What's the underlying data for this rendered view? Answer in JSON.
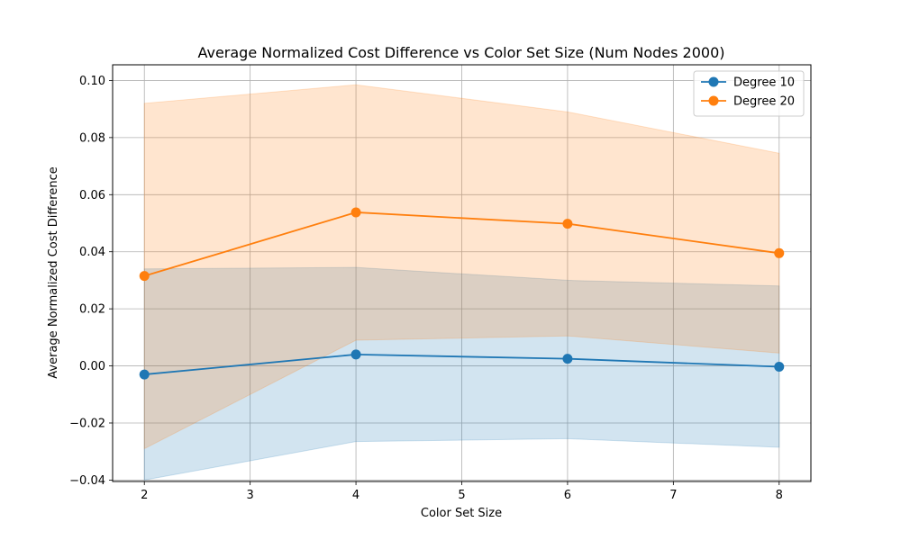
{
  "chart_data": {
    "type": "line",
    "title": "Average Normalized Cost Difference vs Color Set Size (Num Nodes 2000)",
    "xlabel": "Color Set Size",
    "ylabel": "Average Normalized Cost Difference",
    "xlim": [
      1.7,
      8.3
    ],
    "ylim": [
      -0.0405,
      0.1055
    ],
    "xticks": [
      2,
      3,
      4,
      5,
      6,
      7,
      8
    ],
    "yticks": [
      -0.04,
      -0.02,
      0.0,
      0.02,
      0.04,
      0.06,
      0.08,
      0.1
    ],
    "ytick_labels": [
      "−0.04",
      "−0.02",
      "0.00",
      "0.02",
      "0.04",
      "0.06",
      "0.08",
      "0.10"
    ],
    "grid": true,
    "legend_position": "top-right",
    "x": [
      2,
      4,
      6,
      8
    ],
    "series": [
      {
        "name": "Degree 10",
        "color": "#1f77b4",
        "values": [
          -0.003,
          0.004,
          0.0025,
          -0.0003
        ],
        "band_lower": [
          -0.04,
          -0.0265,
          -0.0255,
          -0.0285
        ],
        "band_upper": [
          0.034,
          0.0345,
          0.03,
          0.028
        ]
      },
      {
        "name": "Degree 20",
        "color": "#ff7f0e",
        "values": [
          0.0315,
          0.0538,
          0.0498,
          0.0395
        ],
        "band_lower": [
          -0.029,
          0.009,
          0.0105,
          0.0045
        ],
        "band_upper": [
          0.092,
          0.0985,
          0.089,
          0.0745
        ]
      }
    ]
  }
}
